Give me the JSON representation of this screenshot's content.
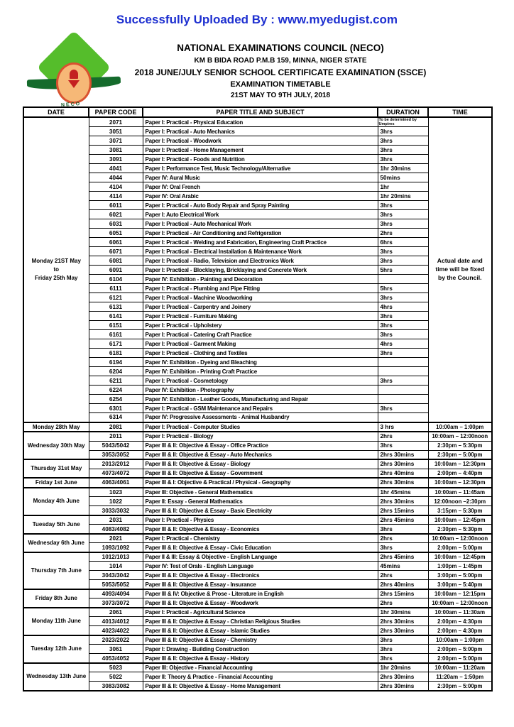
{
  "colors": {
    "banner_blue": "#1d2fd0",
    "logo_green": "#55bd2b",
    "logo_dark_green": "#156b2c",
    "logo_seal_orange": "#f6b877",
    "logo_red": "#c42020"
  },
  "banner": {
    "text": "Successfully Uploaded By : www.myedugist.com"
  },
  "logo": {
    "text": "NECO"
  },
  "header": {
    "org": "NATIONAL EXAMINATIONS COUNCIL (NECO)",
    "address": "KM B BIDA ROAD P.M.B 159, MINNA, NIGER STATE",
    "exam": "2018 JUNE/JULY SENIOR SCHOOL CERTIFICATE EXAMINATION (SSCE)",
    "title": "EXAMINATION TIMETABLE",
    "period": "21ST  MAY TO 9TH  JULY, 2018"
  },
  "table": {
    "columns": [
      "DATE",
      "PAPER CODE",
      "PAPER TITLE AND SUBJECT",
      "DURATION",
      "TIME"
    ],
    "groups": [
      {
        "date": "Monday 21ST  May\nto\nFriday 25th May",
        "time_note": "Actual date and time will be fixed by the Council.",
        "rows": [
          {
            "code": "2071",
            "title": "Paper I: Practical - Physical Education",
            "duration": "To be determined by Umpires"
          },
          {
            "code": "3051",
            "title": "Paper I: Practical - Auto Mechanics",
            "duration": "3hrs"
          },
          {
            "code": "3071",
            "title": "Paper I: Practical - Woodwork",
            "duration": "3hrs"
          },
          {
            "code": "3081",
            "title": "Paper I: Practical - Home Management",
            "duration": "3hrs"
          },
          {
            "code": "3091",
            "title": "Paper I: Practical - Foods and Nutrition",
            "duration": "3hrs"
          },
          {
            "code": "4041",
            "title": "Paper I: Performance Test, Music Technology/Alternative",
            "duration": "1hr 30mins"
          },
          {
            "code": "4044",
            "title": "Paper IV: Aural Music",
            "duration": "50mins"
          },
          {
            "code": "4104",
            "title": "Paper IV: Oral French",
            "duration": "1hr"
          },
          {
            "code": "4114",
            "title": "Paper IV: Oral Arabic",
            "duration": "1hr 20mins"
          },
          {
            "code": "6011",
            "title": "Paper I: Practical - Auto Body Repair and Spray Painting",
            "duration": "3hrs"
          },
          {
            "code": "6021",
            "title": "Paper I: Auto Electrical Work",
            "duration": "3hrs"
          },
          {
            "code": "6031",
            "title": "Paper I: Practical - Auto Mechanical Work",
            "duration": "3hrs"
          },
          {
            "code": "6051",
            "title": "Paper I: Practical - Air Conditioning and Refrigeration",
            "duration": "2hrs"
          },
          {
            "code": "6061",
            "title": "Paper I: Practical - Welding and Fabrication, Engineering Craft Practice",
            "duration": "6hrs"
          },
          {
            "code": "6071",
            "title": "Paper I: Practical - Electrical Installation & Maintenance Work",
            "duration": "3hrs"
          },
          {
            "code": "6081",
            "title": "Paper I: Practical - Radio, Television and Electronics Work",
            "duration": "3hrs"
          },
          {
            "code": "6091",
            "title": "Paper I: Practical - Blocklaying, Bricklaying and Concrete Work",
            "duration": "5hrs"
          },
          {
            "code": "6104",
            "title": "Paper IV: Exhibition - Painting and Decoration",
            "duration": ""
          },
          {
            "code": "6111",
            "title": "Paper I: Practical - Plumbing and Pipe Fitting",
            "duration": "5hrs"
          },
          {
            "code": "6121",
            "title": "Paper I: Practical - Machine Woodworking",
            "duration": "3hrs"
          },
          {
            "code": "6131",
            "title": "Paper I: Practical - Carpentry and Joinery",
            "duration": "4hrs"
          },
          {
            "code": "6141",
            "title": "Paper I: Practical - Furniture Making",
            "duration": "3hrs"
          },
          {
            "code": "6151",
            "title": "Paper I: Practical - Upholstery",
            "duration": "3hrs"
          },
          {
            "code": "6161",
            "title": "Paper I: Practical - Catering Craft Practice",
            "duration": "3hrs"
          },
          {
            "code": "6171",
            "title": "Paper I: Practical - Garment Making",
            "duration": "4hrs"
          },
          {
            "code": "6181",
            "title": "Paper I: Practical - Clothing and Textiles",
            "duration": "3hrs"
          },
          {
            "code": "6194",
            "title": "Paper IV: Exhibition - Dyeing and Bleaching",
            "duration": ""
          },
          {
            "code": "6204",
            "title": "Paper IV: Exhibition - Printing Craft Practice",
            "duration": ""
          },
          {
            "code": "6211",
            "title": "Paper I: Practical - Cosmetology",
            "duration": "3hrs"
          },
          {
            "code": "6224",
            "title": "Paper IV: Exhibition - Photography",
            "duration": ""
          },
          {
            "code": "6254",
            "title": "Paper IV: Exhibition - Leather Goods, Manufacturing and Repair",
            "duration": ""
          },
          {
            "code": "6301",
            "title": "Paper I: Practical - GSM Maintenance and Repairs",
            "duration": "3hrs"
          },
          {
            "code": "6314",
            "title": "Paper IV: Progressive Assessments - Animal Husbandry",
            "duration": ""
          }
        ]
      },
      {
        "date": "Monday 28th  May",
        "rows": [
          {
            "code": "2081",
            "title": "Paper I: Practical - Computer Studies",
            "duration": "3 hrs",
            "time": "10:00am –  1:00pm"
          }
        ]
      },
      {
        "date": "Wednesday 30th May",
        "rows": [
          {
            "code": "2011",
            "title": "Paper I: Practical - Biology",
            "duration": "2hrs",
            "time": "10:00am –  12:00noon"
          },
          {
            "code": "5043/5042",
            "title": "Paper III & II: Objective & Essay - Office Practice",
            "duration": "3hrs",
            "time": "2:30pm –  5:30pm"
          },
          {
            "code": "3053/3052",
            "title": "Paper III & II: Objective & Essay - Auto Mechanics",
            "duration": "2hrs 30mins",
            "time": "2:30pm –  5:00pm"
          }
        ]
      },
      {
        "date": "Thursday 31st  May",
        "rows": [
          {
            "code": "2013/2012",
            "title": "Paper III & II: Objective & Essay - Biology",
            "duration": "2hrs 30mins",
            "time": "10:00am –  12:30pm"
          },
          {
            "code": "4073/4072",
            "title": "Paper III & II: Objective & Essay - Government",
            "duration": "2hrs 40mins",
            "time": "2:00pm –  4:40pm"
          }
        ]
      },
      {
        "date": "Friday 1st June",
        "rows": [
          {
            "code": "4063/4061",
            "title": "Paper III & I: Objective & Practical / Physical - Geography",
            "duration": "2hrs 30mins",
            "time": "10:00am –  12:30pm"
          }
        ]
      },
      {
        "date": "Monday 4th June",
        "rows": [
          {
            "code": "1023",
            "title": "Paper III: Objective - General Mathematics",
            "duration": "1hr 45mins",
            "time": "10:00am –  11:45am"
          },
          {
            "code": "1022",
            "title": "Paper II: Essay - General Mathematics",
            "duration": "2hrs 30mins",
            "time": "12:00noon –2:30pm"
          },
          {
            "code": "3033/3032",
            "title": "Paper III & II: Objective & Essay - Basic Electricity",
            "duration": "2hrs 15mins",
            "time": "3:15pm –  5:30pm"
          }
        ]
      },
      {
        "date": "Tuesday 5th June",
        "rows": [
          {
            "code": "2031",
            "title": "Paper I: Practical - Physics",
            "duration": "2hrs 45mins",
            "time": "10:00am –  12:45pm"
          },
          {
            "code": "4083/4082",
            "title": "Paper III & II: Objective & Essay - Economics",
            "duration": "3hrs",
            "time": "2:30pm –  5:30pm"
          }
        ]
      },
      {
        "date": "Wednesday 6th June",
        "rows": [
          {
            "code": "2021",
            "title": "Paper I: Practical - Chemistry",
            "duration": "2hrs",
            "time": "10:00am – 12:00noon"
          },
          {
            "code": "1093/1092",
            "title": "Paper III & II: Objective & Essay - Civic Education",
            "duration": "3hrs",
            "time": "2:00pm –  5:00pm"
          }
        ]
      },
      {
        "date": "Thursday 7th June",
        "rows": [
          {
            "code": "1012/1013",
            "title": "Paper II & III: Essay & Objective - English Language",
            "duration": "2hrs 45mins",
            "time": "10:00am –  12:45pm"
          },
          {
            "code": "1014",
            "title": "Paper IV: Test of Orals - English Language",
            "duration": "45mins",
            "time": "1:00pm –   1:45pm"
          },
          {
            "code": "3043/3042",
            "title": "Paper III & II: Objective & Essay - Electronics",
            "duration": "2hrs",
            "time": "3:00pm –   5:00pm"
          },
          {
            "code": "5053/5052",
            "title": "Paper III & II: Objective & Essay - Insurance",
            "duration": "2hrs 40mins",
            "time": "3:00pm –   5:40pm"
          }
        ]
      },
      {
        "date": "Friday 8th June",
        "rows": [
          {
            "code": "4093/4094",
            "title": "Paper III & IV: Objective & Prose - Literature in English",
            "duration": "2hrs 15mins",
            "time": "10:00am –  12:15pm"
          },
          {
            "code": "3073/3072",
            "title": "Paper III & II: Objective & Essay - Woodwork",
            "duration": "2hrs",
            "time": "10:00am –  12:00noon"
          }
        ]
      },
      {
        "date": "Monday 11th June",
        "rows": [
          {
            "code": "2061",
            "title": "Paper I: Practical - Agricultural Science",
            "duration": "1hr 30mins",
            "time": "10:00am – 11:30am"
          },
          {
            "code": "4013/4012",
            "title": "Paper III & II: Objective & Essay - Christian Religious Studies",
            "duration": "2hrs 30mins",
            "time": "2:00pm –  4:30pm"
          },
          {
            "code": "4023/4022",
            "title": "Paper III & II: Objective & Essay - Islamic Studies",
            "duration": "2hrs 30mins",
            "time": "2:00pm –  4:30pm"
          }
        ]
      },
      {
        "date": "Tuesday 12th June",
        "rows": [
          {
            "code": "2023/2022",
            "title": "Paper III & II: Objective & Essay - Chemistry",
            "duration": "3hrs",
            "time": "10:00am –   1:00pm"
          },
          {
            "code": "3061",
            "title": "Paper I: Drawing - Building Construction",
            "duration": "3hrs",
            "time": "2:00pm –  5:00pm"
          },
          {
            "code": "4053/4052",
            "title": "Paper III & II: Objective & Essay - History",
            "duration": "3hrs",
            "time": "2:00pm –   5:00pm"
          }
        ]
      },
      {
        "date": "Wednesday 13th June",
        "rows": [
          {
            "code": "5023",
            "title": "Paper III: Objective - Financial Accounting",
            "duration": "1hr 20mins",
            "time": "10:00am – 11:20am"
          },
          {
            "code": "5022",
            "title": "Paper II: Theory & Practice - Financial Accounting",
            "duration": "2hrs 30mins",
            "time": "11:20am –  1:50pm"
          },
          {
            "code": "3083/3082",
            "title": "Paper III & II: Objective & Essay - Home Management",
            "duration": "2hrs 30mins",
            "time": "2:30pm –  5:00pm"
          }
        ]
      }
    ]
  }
}
